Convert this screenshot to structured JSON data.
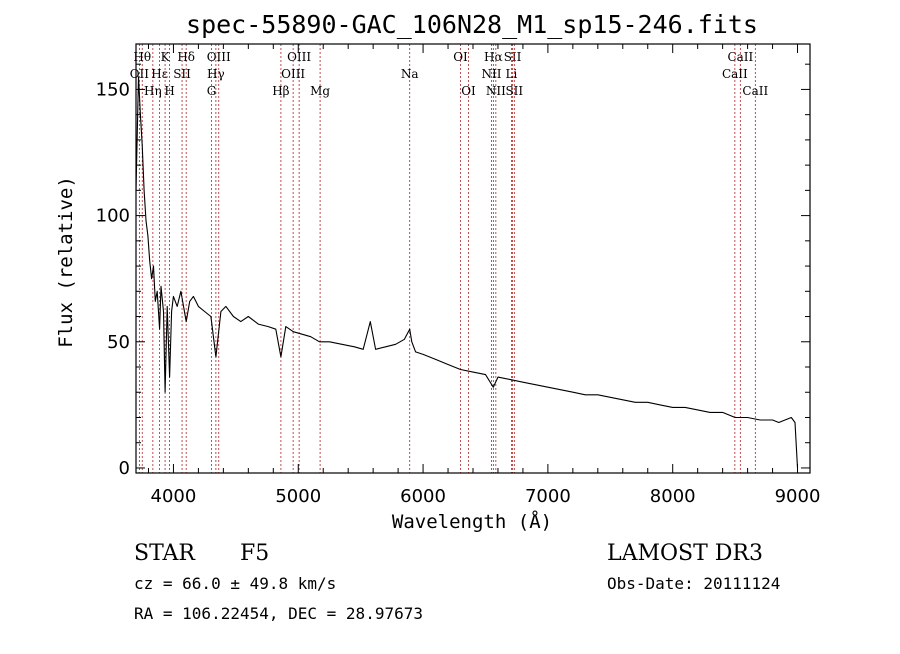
{
  "chart_data": {
    "type": "line",
    "title": "spec-55890-GAC_106N28_M1_sp15-246.fits",
    "xlabel": "Wavelength (Å)",
    "ylabel": "Flux (relative)",
    "xlim": [
      3700,
      9100
    ],
    "ylim": [
      -2,
      168
    ],
    "x_ticks": [
      4000,
      5000,
      6000,
      7000,
      8000,
      9000
    ],
    "x_tick_labels": [
      "4000",
      "5000",
      "6000",
      "7000",
      "8000",
      "9000"
    ],
    "y_ticks": [
      0,
      50,
      100,
      150
    ],
    "y_tick_labels": [
      "0",
      "50",
      "100",
      "150"
    ],
    "series": [
      {
        "name": "flux",
        "color": "#000000",
        "x": [
          3700,
          3720,
          3735,
          3750,
          3765,
          3780,
          3795,
          3810,
          3825,
          3840,
          3855,
          3870,
          3889,
          3900,
          3920,
          3933,
          3950,
          3969,
          3985,
          4000,
          4030,
          4060,
          4102,
          4130,
          4160,
          4200,
          4250,
          4300,
          4340,
          4380,
          4420,
          4480,
          4540,
          4600,
          4680,
          4760,
          4820,
          4861,
          4900,
          4960,
          5030,
          5100,
          5170,
          5250,
          5350,
          5450,
          5520,
          5577,
          5620,
          5700,
          5780,
          5850,
          5893,
          5910,
          5940,
          6000,
          6100,
          6200,
          6300,
          6400,
          6500,
          6563,
          6600,
          6700,
          6800,
          6900,
          7000,
          7100,
          7200,
          7300,
          7400,
          7500,
          7600,
          7700,
          7800,
          7900,
          8000,
          8100,
          8200,
          8300,
          8400,
          8500,
          8600,
          8700,
          8800,
          8850,
          8900,
          8950,
          8980,
          9000
        ],
        "y": [
          110,
          155,
          140,
          128,
          110,
          98,
          92,
          82,
          75,
          80,
          66,
          70,
          55,
          72,
          62,
          30,
          64,
          36,
          62,
          68,
          64,
          70,
          58,
          66,
          68,
          64,
          62,
          60,
          44,
          62,
          64,
          60,
          58,
          60,
          57,
          56,
          55,
          44,
          56,
          54,
          53,
          52,
          50,
          50,
          49,
          48,
          47,
          58,
          47,
          48,
          49,
          51,
          55,
          50,
          46,
          45,
          43,
          41,
          39,
          38,
          37,
          32,
          36,
          35,
          34,
          33,
          32,
          31,
          30,
          29,
          29,
          28,
          27,
          26,
          26,
          25,
          24,
          24,
          23,
          22,
          22,
          20,
          20,
          19,
          19,
          18,
          19,
          20,
          18,
          0
        ]
      }
    ],
    "line_markers": [
      {
        "label": "Hθ",
        "x": 3750,
        "row": 0
      },
      {
        "label": "OII",
        "x": 3727,
        "row": 1
      },
      {
        "label": "Hη",
        "x": 3835,
        "row": 2
      },
      {
        "label": "K",
        "x": 3933,
        "row": 0
      },
      {
        "label": "Hε",
        "x": 3889,
        "row": 1
      },
      {
        "label": "H",
        "x": 3969,
        "row": 2
      },
      {
        "label": "SII",
        "x": 4069,
        "row": 1
      },
      {
        "label": "Hδ",
        "x": 4102,
        "row": 0
      },
      {
        "label": "OIII",
        "x": 4363,
        "row": 0
      },
      {
        "label": "Hγ",
        "x": 4340,
        "row": 1
      },
      {
        "label": "G",
        "x": 4305,
        "row": 2
      },
      {
        "label": "Hβ",
        "x": 4861,
        "row": 2
      },
      {
        "label": "OIII",
        "x": 5007,
        "row": 0
      },
      {
        "label": "OIII",
        "x": 4959,
        "row": 1
      },
      {
        "label": "Mg",
        "x": 5175,
        "row": 2
      },
      {
        "label": "Na",
        "x": 5893,
        "row": 1
      },
      {
        "label": "OI",
        "x": 6300,
        "row": 0
      },
      {
        "label": "OI",
        "x": 6364,
        "row": 2
      },
      {
        "label": "Hα",
        "x": 6563,
        "row": 0
      },
      {
        "label": "NII",
        "x": 6548,
        "row": 1
      },
      {
        "label": "NII",
        "x": 6583,
        "row": 2
      },
      {
        "label": "SII",
        "x": 6717,
        "row": 0
      },
      {
        "label": "Li",
        "x": 6708,
        "row": 1
      },
      {
        "label": "SII",
        "x": 6731,
        "row": 2
      },
      {
        "label": "CaII",
        "x": 8542,
        "row": 0
      },
      {
        "label": "CaII",
        "x": 8498,
        "row": 1
      },
      {
        "label": "CaII",
        "x": 8662,
        "row": 2
      }
    ]
  },
  "info": {
    "class": "STAR",
    "subclass": "F5",
    "survey": "LAMOST DR3",
    "cz": "cz = 66.0 ± 49.8 km/s",
    "obs_date": "Obs-Date: 20111124",
    "radec": "RA = 106.22454, DEC =  28.97673"
  },
  "colors": {
    "marker_line": "#b22222",
    "spectrum": "#000000"
  }
}
